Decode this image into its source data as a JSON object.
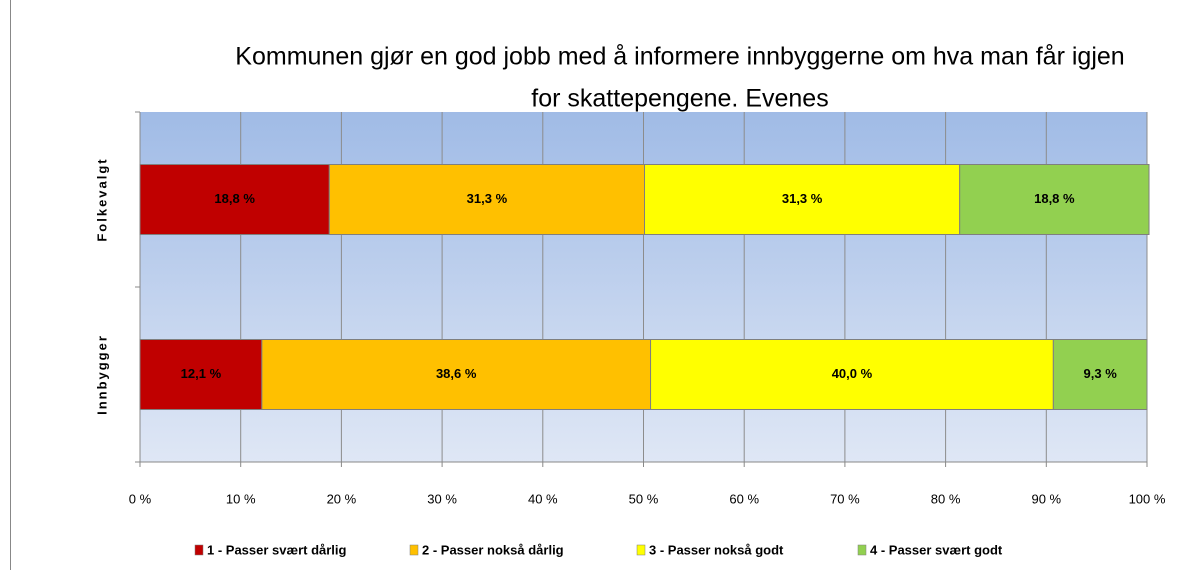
{
  "chart_data": {
    "type": "stacked-bar-horizontal",
    "title_lines": [
      "Kommunen gjør en god jobb med å informere innbyggerne om hva man får igjen",
      "for skattepengene. Evenes"
    ],
    "categories": [
      "Folkevalgt",
      "Innbygger"
    ],
    "series": [
      {
        "name": "1 - Passer svært dårlig",
        "color": "#c00000",
        "values": [
          18.8,
          12.1
        ],
        "value_labels": [
          "18,8 %",
          "12,1 %"
        ]
      },
      {
        "name": "2 - Passer nokså dårlig",
        "color": "#ffc000",
        "values": [
          31.3,
          38.6
        ],
        "value_labels": [
          "31,3 %",
          "38,6 %"
        ]
      },
      {
        "name": "3 - Passer nokså godt",
        "color": "#ffff00",
        "values": [
          31.3,
          40.0
        ],
        "value_labels": [
          "31,3 %",
          "40,0 %"
        ]
      },
      {
        "name": "4 - Passer svært godt",
        "color": "#92d050",
        "values": [
          18.8,
          9.3
        ],
        "value_labels": [
          "18,8 %",
          "9,3 %"
        ]
      }
    ],
    "xlim": [
      0,
      100
    ],
    "xticks": [
      {
        "value": 0,
        "label": "0 %"
      },
      {
        "value": 10,
        "label": "10 %"
      },
      {
        "value": 20,
        "label": "20 %"
      },
      {
        "value": 30,
        "label": "30 %"
      },
      {
        "value": 40,
        "label": "40 %"
      },
      {
        "value": 50,
        "label": "50 %"
      },
      {
        "value": 60,
        "label": "60 %"
      },
      {
        "value": 70,
        "label": "70 %"
      },
      {
        "value": 80,
        "label": "80 %"
      },
      {
        "value": 90,
        "label": "90 %"
      },
      {
        "value": 100,
        "label": "100 %"
      }
    ],
    "grid": true,
    "legend": "bottom"
  }
}
